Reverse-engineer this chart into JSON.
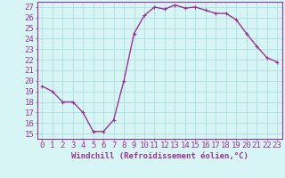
{
  "x": [
    0,
    1,
    2,
    3,
    4,
    5,
    6,
    7,
    8,
    9,
    10,
    11,
    12,
    13,
    14,
    15,
    16,
    17,
    18,
    19,
    20,
    21,
    22,
    23
  ],
  "y": [
    19.5,
    19.0,
    18.0,
    18.0,
    17.0,
    15.2,
    15.2,
    16.3,
    20.0,
    24.5,
    26.2,
    27.0,
    26.8,
    27.2,
    26.9,
    27.0,
    26.7,
    26.4,
    26.4,
    25.8,
    24.5,
    23.3,
    22.2,
    21.8
  ],
  "line_color": "#993399",
  "marker": "+",
  "bg_color": "#d8f5f5",
  "grid_color": "#b0dede",
  "ylabel_ticks": [
    15,
    16,
    17,
    18,
    19,
    20,
    21,
    22,
    23,
    24,
    25,
    26,
    27
  ],
  "xlim": [
    -0.5,
    23.5
  ],
  "ylim": [
    14.5,
    27.5
  ],
  "xticks": [
    0,
    1,
    2,
    3,
    4,
    5,
    6,
    7,
    8,
    9,
    10,
    11,
    12,
    13,
    14,
    15,
    16,
    17,
    18,
    19,
    20,
    21,
    22,
    23
  ],
  "xlabel": "Windchill (Refroidissement éolien,°C)",
  "xlabel_fontsize": 6.5,
  "tick_fontsize": 6.5,
  "tick_color": "#993399",
  "axis_color": "#993399",
  "line_width": 1.0,
  "marker_size": 3.5
}
